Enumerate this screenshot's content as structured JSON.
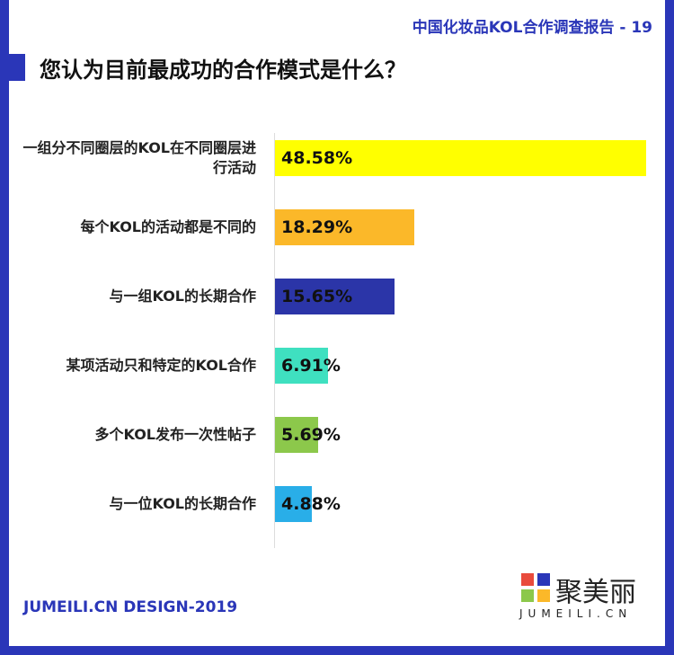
{
  "chart_data": {
    "type": "bar",
    "orientation": "horizontal",
    "header": "中国化妆品KOL合作调查报告 - 19",
    "title": "您认为目前最成功的合作模式是什么？",
    "categories": [
      "一组分不同圈层的KOL在不同圈层进行活动",
      "每个KOL的活动都是不同的",
      "与一组KOL的长期合作",
      "某项活动只和特定的KOL合作",
      "多个KOL发布一次性帖子",
      "与一位KOL的长期合作"
    ],
    "values": [
      48.58,
      18.29,
      15.65,
      6.91,
      5.69,
      4.88
    ],
    "value_labels": [
      "48.58%",
      "18.29%",
      "15.65%",
      "6.91%",
      "5.69%",
      "4.88%"
    ],
    "colors": [
      "#ffff00",
      "#fbb829",
      "#2b35a8",
      "#3fe0c0",
      "#8cc84b",
      "#29aee8"
    ],
    "footer": "JUMEILI.CN DESIGN-2019",
    "logo_text": "聚美丽",
    "logo_subtext": "JUMEILI.CN"
  }
}
